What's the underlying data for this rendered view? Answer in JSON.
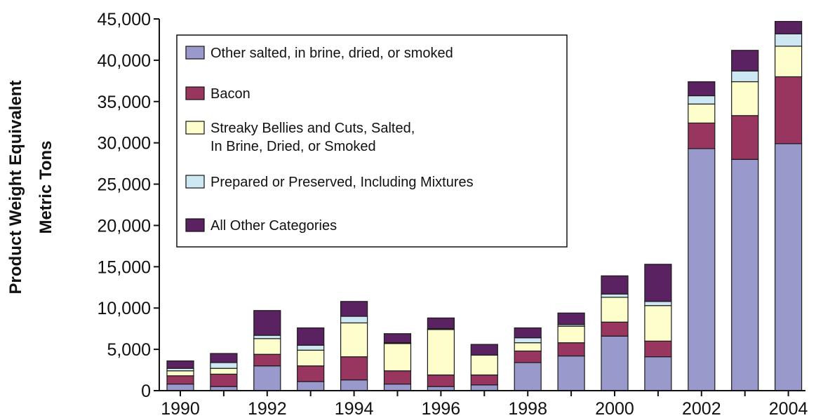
{
  "chart_data": {
    "type": "bar",
    "stacked": true,
    "categories": [
      "1990",
      "1991",
      "1992",
      "1993",
      "1994",
      "1995",
      "1996",
      "1997",
      "1998",
      "1999",
      "2000",
      "2001",
      "2002",
      "2003",
      "2004"
    ],
    "x_tick_labels": [
      "1990",
      "1992",
      "1994",
      "1996",
      "1998",
      "2000",
      "2002",
      "2004"
    ],
    "ylabel": [
      "Product Weight Equivalent",
      "Metric Tons"
    ],
    "ylim": [
      0,
      45000
    ],
    "yticks": [
      0,
      5000,
      10000,
      15000,
      20000,
      25000,
      30000,
      35000,
      40000,
      45000
    ],
    "ytick_labels": [
      "0",
      "5,000",
      "10,000",
      "15,000",
      "20,000",
      "25,000",
      "30,000",
      "35,000",
      "40,000",
      "45,000"
    ],
    "grid": false,
    "legend_position": "top-left",
    "series": [
      {
        "name": "Other salted, in brine, dried, or smoked",
        "color": "#9a99cc",
        "values": [
          800,
          500,
          3000,
          1100,
          1300,
          800,
          500,
          700,
          3400,
          4200,
          6600,
          4100,
          29300,
          28000,
          29900
        ]
      },
      {
        "name": "Bacon",
        "color": "#983660",
        "values": [
          1000,
          1500,
          1400,
          1900,
          2800,
          1600,
          1400,
          1200,
          1400,
          1600,
          1700,
          1900,
          3100,
          5300,
          8100
        ]
      },
      {
        "name": "Streaky Bellies and Cuts, Salted,\nIn Brine, Dried, or Smoked",
        "color": "#fefecc",
        "values": [
          600,
          700,
          1900,
          1900,
          4100,
          3300,
          5500,
          2400,
          1000,
          2000,
          3000,
          4300,
          2300,
          4100,
          3700
        ]
      },
      {
        "name": "Prepared or Preserved, Including Mixtures",
        "color": "#cde8f2",
        "values": [
          300,
          700,
          400,
          600,
          800,
          100,
          100,
          0,
          600,
          200,
          400,
          500,
          1000,
          1300,
          1500
        ]
      },
      {
        "name": "All Other Categories",
        "color": "#5a2260",
        "values": [
          900,
          1100,
          3000,
          2100,
          1800,
          1100,
          1300,
          1300,
          1200,
          1400,
          2200,
          4500,
          1700,
          2500,
          1500
        ]
      }
    ]
  }
}
